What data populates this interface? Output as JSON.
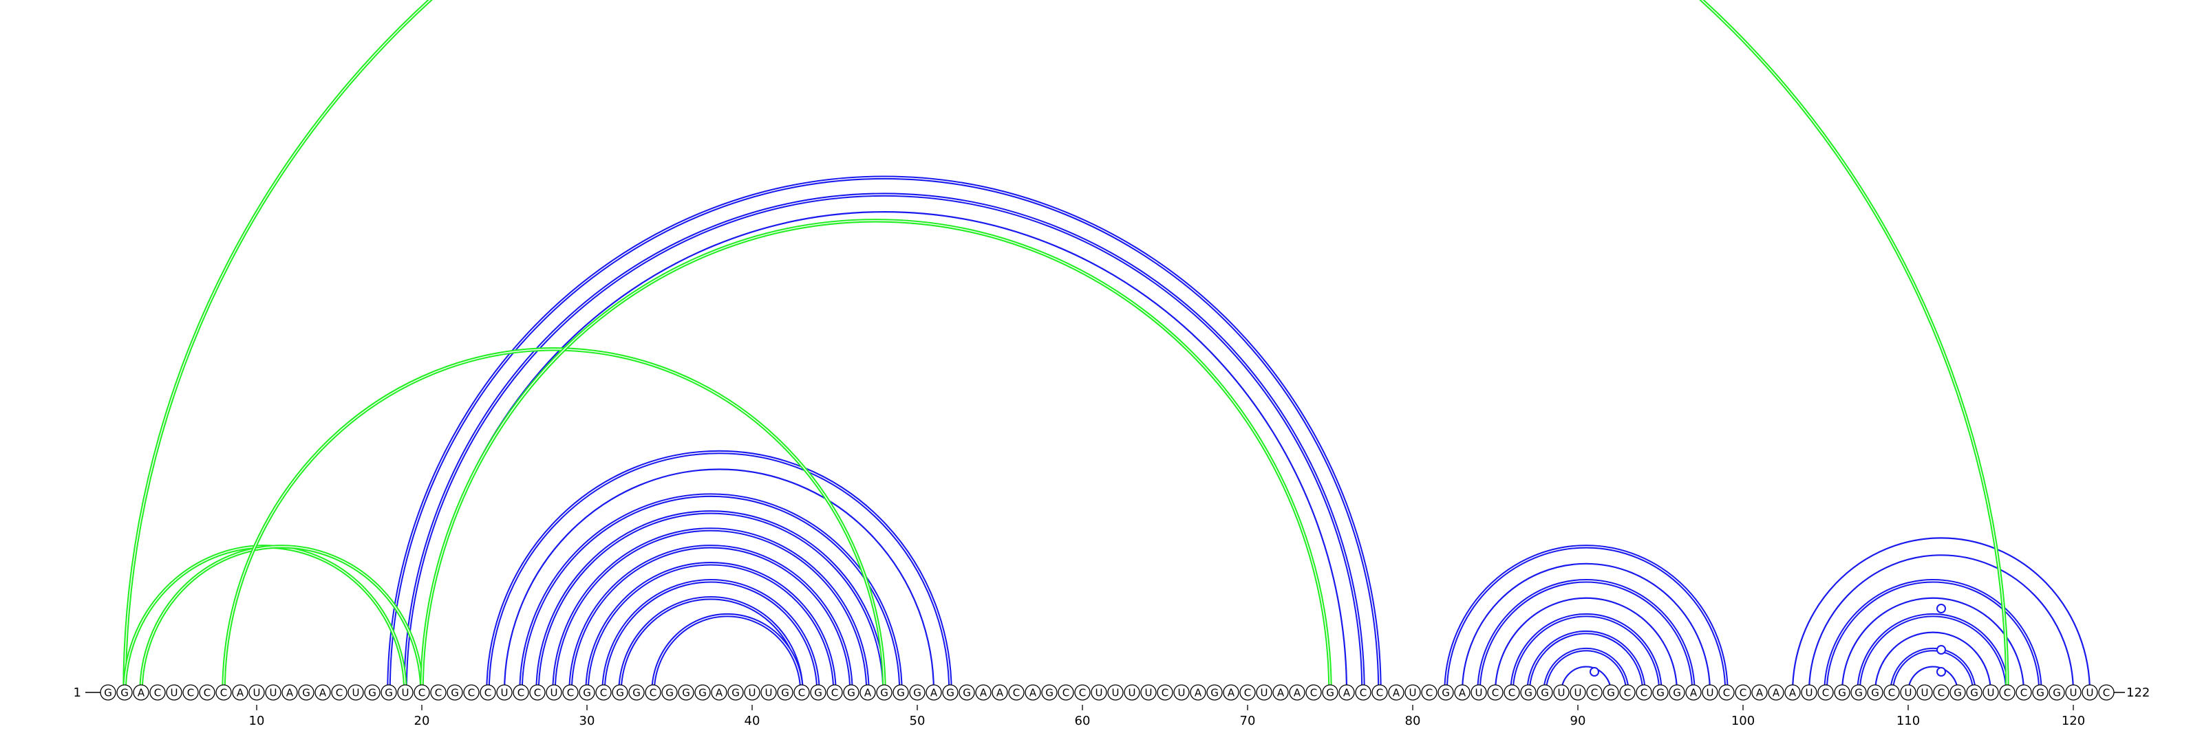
{
  "sequence": "GGACUCCCAUUAGACUGGUCCGCCUCCUCGCGGCGGGAGUUGCGCGAGGGAGGAACAGCCUUUUCUAGACUAACGACCAUCGAUCCGGUUCGCCGGAUCCAAAUCGGGCUUCGGUCCGGUUC",
  "start_label": "1",
  "end_label": "122",
  "tick_labels": [
    "10",
    "20",
    "30",
    "40",
    "50",
    "60",
    "70",
    "80",
    "90",
    "100",
    "110",
    "120"
  ],
  "colors": {
    "blue": "#1a1aee",
    "green": "#22ee22"
  },
  "helices": [
    {
      "color": "blue",
      "i": 18,
      "j": 78,
      "n": 3,
      "double": [
        true,
        true,
        false
      ]
    },
    {
      "color": "blue",
      "i": 24,
      "j": 52,
      "n": 2,
      "double": [
        true,
        false
      ]
    },
    {
      "color": "blue",
      "i": 26,
      "j": 49,
      "n": 3,
      "double": [
        true,
        true,
        true
      ]
    },
    {
      "color": "blue",
      "i": 29,
      "j": 46,
      "n": 4,
      "double": [
        true,
        true,
        true,
        true
      ]
    },
    {
      "color": "blue",
      "i": 34,
      "j": 43,
      "n": 1,
      "double": [
        true
      ]
    },
    {
      "color": "blue",
      "i": 82,
      "j": 99,
      "n": 4,
      "double": [
        true,
        false,
        true,
        false
      ]
    },
    {
      "color": "blue",
      "i": 86,
      "j": 95,
      "n": 4,
      "double": [
        true,
        true,
        true,
        false
      ]
    },
    {
      "color": "blue",
      "i": 103,
      "j": 121,
      "n": 2,
      "double": [
        false,
        false
      ]
    },
    {
      "color": "blue",
      "i": 105,
      "j": 118,
      "n": 6,
      "double": [
        true,
        false,
        true,
        false,
        true,
        false
      ]
    },
    {
      "color": "green",
      "i": 2,
      "j": 116,
      "n": 1,
      "double": [
        true
      ]
    },
    {
      "color": "green",
      "i": 2,
      "j": 19,
      "n": 1,
      "double": [
        true
      ]
    },
    {
      "color": "green",
      "i": 3,
      "j": 20,
      "n": 1,
      "double": [
        true
      ]
    },
    {
      "color": "green",
      "i": 8,
      "j": 48,
      "n": 1,
      "double": [
        true
      ]
    },
    {
      "color": "green",
      "i": 20,
      "j": 75,
      "n": 1,
      "double": [
        true
      ]
    }
  ],
  "hairpin_markers": [
    91,
    112
  ]
}
